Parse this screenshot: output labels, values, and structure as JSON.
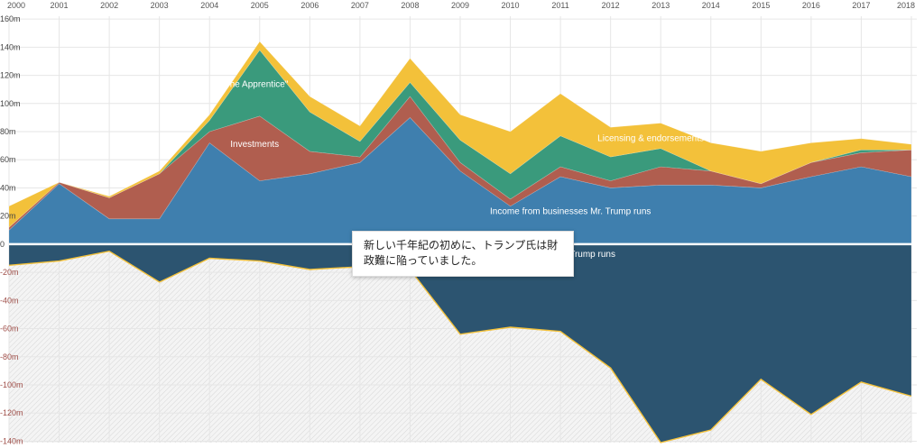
{
  "chart_data": {
    "type": "area",
    "x": [
      2000,
      2001,
      2002,
      2003,
      2004,
      2005,
      2006,
      2007,
      2008,
      2009,
      2010,
      2011,
      2012,
      2013,
      2014,
      2015,
      2016,
      2017,
      2018
    ],
    "x_tick_labels": [
      "2000",
      "2001",
      "2002",
      "2003",
      "2004",
      "2005",
      "2006",
      "2007",
      "2008",
      "2009",
      "2010",
      "2011",
      "2012",
      "2013",
      "2014",
      "2015",
      "2016",
      "2017",
      "2018"
    ],
    "y_tick_labels": [
      "160m",
      "140m",
      "120m",
      "100m",
      "80m",
      "60m",
      "40m",
      "20m",
      "0",
      "-20m",
      "-40m",
      "-60m",
      "-80m",
      "-100m",
      "-120m",
      "-140m"
    ],
    "y_tick_values": [
      160,
      140,
      120,
      100,
      80,
      60,
      40,
      20,
      0,
      -20,
      -40,
      -60,
      -80,
      -100,
      -120,
      -140
    ],
    "ylim": [
      -141,
      162
    ],
    "stacked": true,
    "grid": true,
    "series": [
      {
        "name": "Income from businesses Mr. Trump runs",
        "color": "#3f7fae",
        "values": [
          10,
          43,
          18,
          18,
          72,
          45,
          50,
          58,
          90,
          52,
          27,
          48,
          40,
          42,
          42,
          40,
          48,
          55,
          48
        ]
      },
      {
        "name": "Investments",
        "color": "#b05e4f",
        "values": [
          2,
          1,
          15,
          32,
          8,
          46,
          16,
          4,
          15,
          6,
          5,
          7,
          5,
          13,
          10,
          3,
          10,
          10,
          19
        ]
      },
      {
        "name": "\"The Apprentice\"",
        "color": "#3a9a7c",
        "values": [
          0,
          0,
          0,
          0,
          8,
          47,
          28,
          11,
          10,
          16,
          18,
          22,
          17,
          13,
          0,
          0,
          0,
          2,
          0
        ]
      },
      {
        "name": "Licensing & endorsements",
        "color": "#f3c13a",
        "values": [
          15,
          0,
          1,
          2,
          4,
          6,
          11,
          11,
          17,
          18,
          30,
          30,
          21,
          18,
          20,
          23,
          14,
          8,
          4
        ]
      },
      {
        "name": "Losses from businesses Mr. Trump runs",
        "color": "#2c5470",
        "values": [
          -15,
          -12,
          -5,
          -27,
          -10,
          -12,
          -18,
          -16,
          -18,
          -64,
          -59,
          -62,
          -88,
          -141,
          -132,
          -96,
          -121,
          -98,
          -108
        ]
      }
    ]
  },
  "tooltip": {
    "text": "新しい千年紀の初めに、トランプ氏は財政難に陥っていました。"
  },
  "colors": {
    "positive_axis": "#444444",
    "negative_axis": "#a0504a",
    "zero_line": "#ffffff",
    "hatch": "#d6d6d6",
    "grid": "#e6e6e6"
  }
}
